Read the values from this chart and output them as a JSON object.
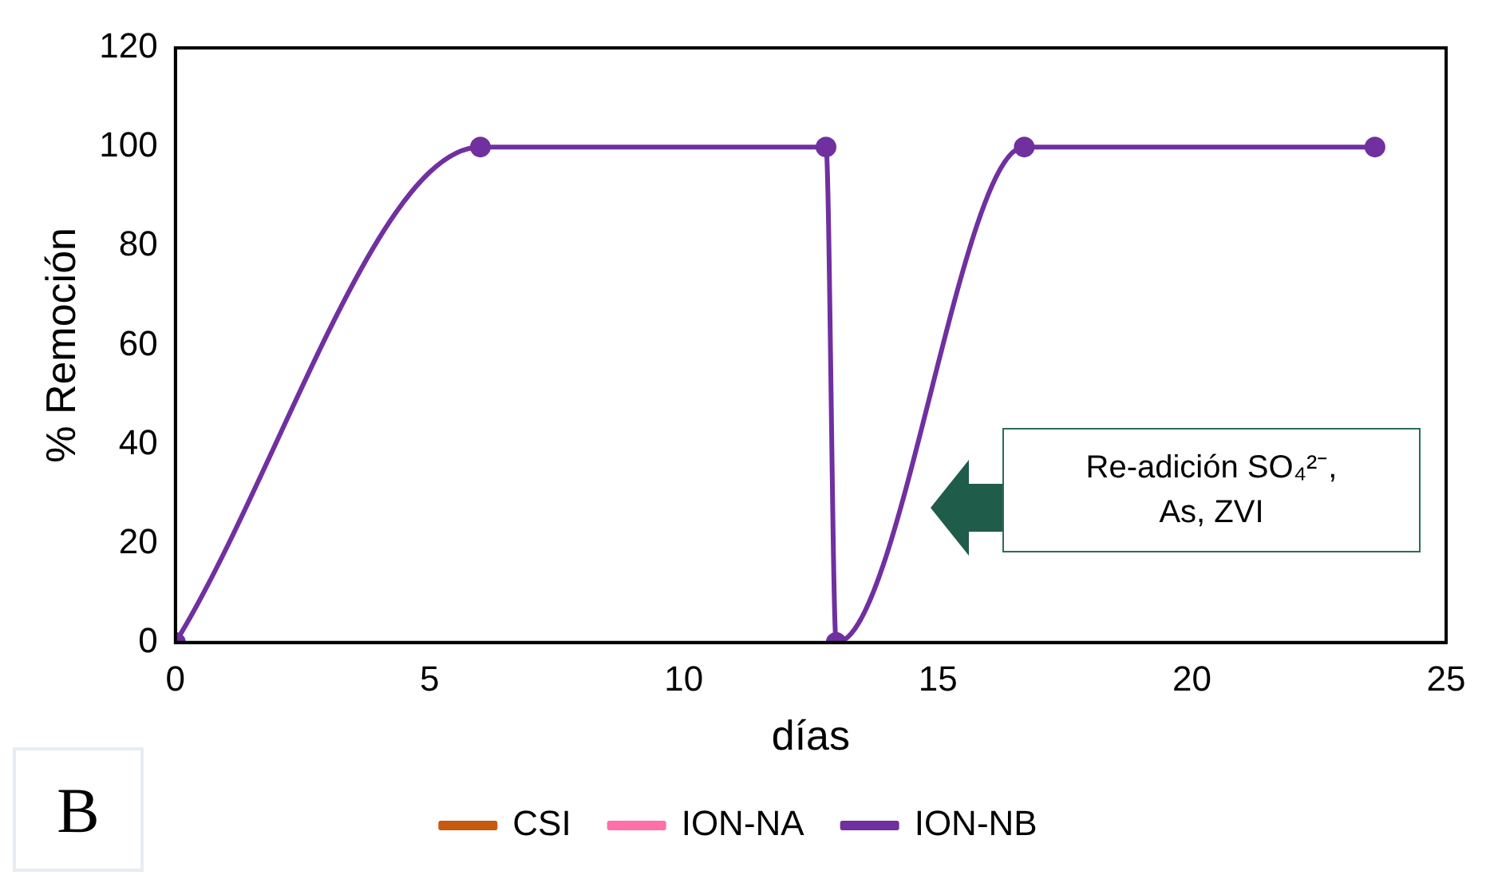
{
  "chart_data": {
    "type": "line",
    "xlabel": "días",
    "ylabel": "% Remoción",
    "x": [
      0,
      6,
      12.8,
      13,
      16.7,
      23.6
    ],
    "series": [
      {
        "name": "CSI",
        "color": "#c55a11",
        "values": [
          null,
          null,
          null,
          null,
          null,
          null
        ]
      },
      {
        "name": "ION-NA",
        "color": "#ff6fa8",
        "values": [
          null,
          null,
          null,
          null,
          null,
          null
        ]
      },
      {
        "name": "ION-NB",
        "color": "#7030a0",
        "values": [
          0,
          100,
          100,
          0,
          100,
          100
        ]
      }
    ],
    "xlim": [
      0,
      25
    ],
    "xticks": [
      0,
      5,
      10,
      15,
      20,
      25
    ],
    "ylim": [
      0,
      120
    ],
    "yticks": [
      0,
      20,
      40,
      60,
      80,
      100,
      120
    ],
    "grid": false,
    "legend": "bottom",
    "marker": "circle",
    "line_style": "solid",
    "annotations": [
      "Re-adición SO₄²⁻, As, ZVI",
      "B"
    ]
  }
}
